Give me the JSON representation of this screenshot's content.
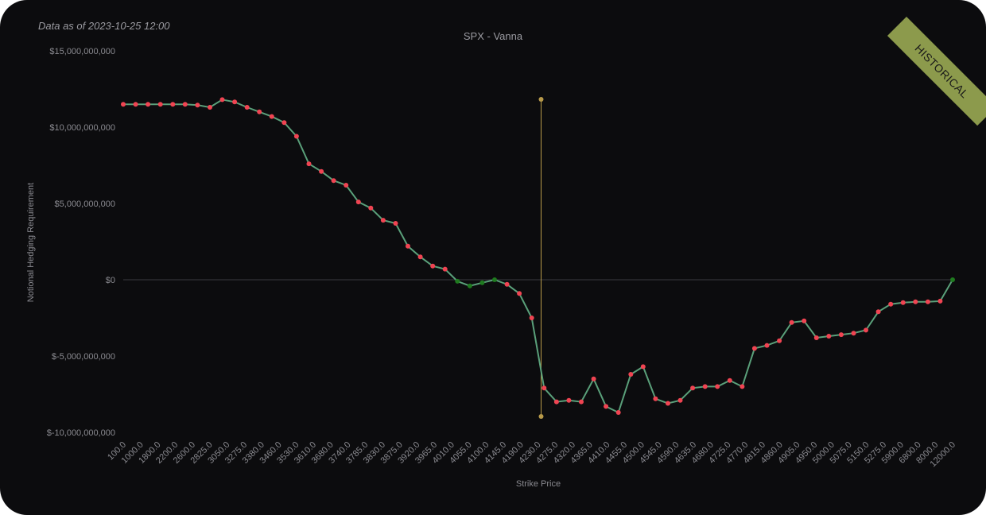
{
  "header": {
    "as_of": "Data as of 2023-10-25 12:00",
    "badge": "HISTORICAL"
  },
  "colors": {
    "negative_marker": "#f04452",
    "positive_marker": "#1f7a1f",
    "line": "#5aa07a",
    "marker_line": "#b89a4a",
    "zero_line": "#3a3a40"
  },
  "chart_data": {
    "type": "line",
    "title": "SPX - Vanna",
    "xlabel": "Strike Price",
    "ylabel": "Notional Hedging Requirement",
    "ylim": [
      -10000000000,
      15000000000
    ],
    "y_ticks": [
      "$15,000,000,000",
      "$10,000,000,000",
      "$5,000,000,000",
      "$0",
      "$-5,000,000,000",
      "$-10,000,000,000"
    ],
    "x_tick_labels": [
      "100.0",
      "1000.0",
      "1800.0",
      "2200.0",
      "2600.0",
      "2825.0",
      "3050.0",
      "3275.0",
      "3380.0",
      "3460.0",
      "3530.0",
      "3610.0",
      "3680.0",
      "3740.0",
      "3785.0",
      "3830.0",
      "3875.0",
      "3920.0",
      "3965.0",
      "4010.0",
      "4055.0",
      "4100.0",
      "4145.0",
      "4190.0",
      "4230.0",
      "4275.0",
      "4320.0",
      "4365.0",
      "4410.0",
      "4455.0",
      "4500.0",
      "4545.0",
      "4590.0",
      "4635.0",
      "4680.0",
      "4725.0",
      "4770.0",
      "4815.0",
      "4860.0",
      "4905.0",
      "4950.0",
      "5000.0",
      "5075.0",
      "5150.0",
      "5275.0",
      "5900.0",
      "6800.0",
      "8000.0",
      "12000.0"
    ],
    "current_price_marker": {
      "x_index": 24.0
    },
    "series": [
      {
        "values": [
          11500000000,
          11500000000,
          11500000000,
          11500000000,
          11500000000,
          11500000000,
          11450000000,
          11300000000,
          11800000000,
          11650000000,
          11300000000,
          11000000000,
          10700000000,
          10300000000,
          9400000000,
          7600000000,
          7100000000,
          6500000000,
          6200000000,
          5100000000,
          4700000000,
          3900000000,
          3700000000,
          2200000000,
          1500000000,
          900000000,
          700000000,
          -100000000,
          -400000000,
          -200000000,
          0,
          -300000000,
          -900000000,
          -2500000000,
          -7100000000,
          -8000000000,
          -7900000000,
          -8000000000,
          -6500000000,
          -8300000000,
          -8700000000,
          -6200000000,
          -5700000000,
          -7800000000,
          -8100000000,
          -7900000000,
          -7100000000,
          -7000000000,
          -7000000000,
          -6600000000,
          -7000000000,
          -4500000000,
          -4300000000,
          -4000000000,
          -2800000000,
          -2700000000,
          -3800000000,
          -3700000000,
          -3600000000,
          -3500000000,
          -3300000000,
          -2100000000,
          -1600000000,
          -1500000000,
          -1450000000,
          -1450000000,
          -1400000000,
          0
        ]
      }
    ]
  }
}
